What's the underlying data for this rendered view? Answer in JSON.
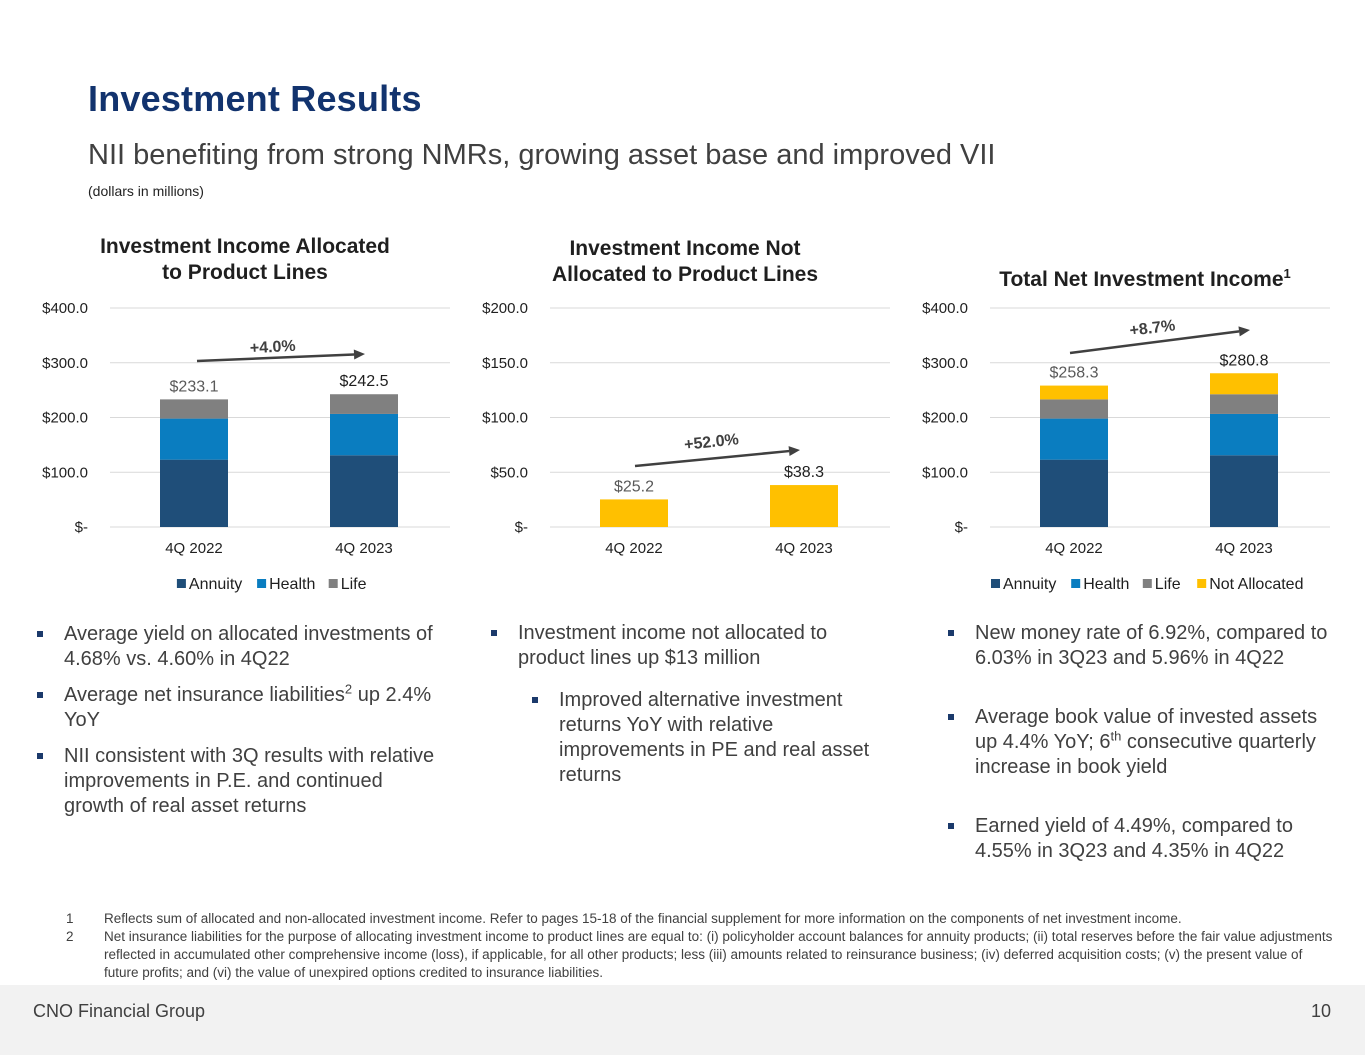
{
  "header": {
    "title": "Investment Results",
    "subtitle": "NII benefiting from strong NMRs, growing asset base and improved VII",
    "units": "(dollars in millions)"
  },
  "colors": {
    "annuity": "#1f4e79",
    "health": "#0a7dc0",
    "life": "#808080",
    "not_allocated": "#ffc000",
    "title": "#12336e"
  },
  "chart_data": [
    {
      "type": "bar",
      "stacked": true,
      "title_line1": "Investment Income Allocated",
      "title_line2": "to Product Lines",
      "categories": [
        "4Q 2022",
        "4Q 2023"
      ],
      "series": [
        {
          "name": "Annuity",
          "values": [
            123.0,
            131.0
          ]
        },
        {
          "name": "Health",
          "values": [
            75.0,
            75.5
          ]
        },
        {
          "name": "Life",
          "values": [
            35.1,
            36.0
          ]
        }
      ],
      "totals": [
        "$233.1",
        "$242.5"
      ],
      "growth_label": "+4.0%",
      "yticks": [
        "$-",
        "$100.0",
        "$200.0",
        "$300.0",
        "$400.0"
      ],
      "ylim": [
        0,
        400
      ],
      "grid": true,
      "legend": "bottom"
    },
    {
      "type": "bar",
      "stacked": true,
      "title_line1": "Investment Income Not",
      "title_line2": "Allocated to Product Lines",
      "categories": [
        "4Q 2022",
        "4Q 2023"
      ],
      "series": [
        {
          "name": "Not Allocated",
          "values": [
            25.2,
            38.3
          ]
        }
      ],
      "totals": [
        "$25.2",
        "$38.3"
      ],
      "growth_label": "+52.0%",
      "yticks": [
        "$-",
        "$50.0",
        "$100.0",
        "$150.0",
        "$200.0"
      ],
      "ylim": [
        0,
        200
      ],
      "grid": true,
      "legend": "none"
    },
    {
      "type": "bar",
      "stacked": true,
      "title_line1": "Total Net Investment Income",
      "title_sup": "1",
      "categories": [
        "4Q 2022",
        "4Q 2023"
      ],
      "series": [
        {
          "name": "Annuity",
          "values": [
            123.0,
            131.0
          ]
        },
        {
          "name": "Health",
          "values": [
            75.0,
            75.5
          ]
        },
        {
          "name": "Life",
          "values": [
            35.1,
            36.0
          ]
        },
        {
          "name": "Not Allocated",
          "values": [
            25.2,
            38.3
          ]
        }
      ],
      "totals": [
        "$258.3",
        "$280.8"
      ],
      "growth_label": "+8.7%",
      "yticks": [
        "$-",
        "$100.0",
        "$200.0",
        "$300.0",
        "$400.0"
      ],
      "ylim": [
        0,
        400
      ],
      "grid": true,
      "legend": "bottom"
    }
  ],
  "bullets": {
    "col1": [
      {
        "text": "Average yield on allocated investments of 4.68% vs. 4.60% in 4Q22"
      },
      {
        "pre": "Average net insurance liabilities",
        "sup": "2",
        "post": " up 2.4% YoY"
      },
      {
        "text": "NII consistent with 3Q results with relative improvements in P.E. and continued growth of real asset returns"
      }
    ],
    "col2": [
      {
        "text": "Investment income not allocated to product lines up $13 million"
      },
      {
        "text": "Improved alternative investment returns YoY with relative improvements in PE and real asset returns"
      }
    ],
    "col3": [
      {
        "text": "New money rate of 6.92%, compared to 6.03% in 3Q23 and 5.96% in 4Q22"
      },
      {
        "pre": "Average book value of invested assets up 4.4% YoY; 6",
        "sup": "th",
        "post": " consecutive quarterly increase in book yield"
      },
      {
        "text": "Earned yield of 4.49%, compared to 4.55% in 3Q23 and 4.35% in 4Q22"
      }
    ]
  },
  "footnotes": [
    {
      "num": "1",
      "text": "Reflects sum of allocated and non-allocated investment income. Refer to pages 15-18 of the financial supplement for more information on the components of net investment income."
    },
    {
      "num": "2",
      "text": "Net insurance liabilities for the purpose of allocating investment income to product lines are equal to: (i) policyholder account balances for annuity products; (ii) total reserves before the fair value adjustments reflected in accumulated other comprehensive income (loss), if applicable, for all other products; less (iii) amounts related to reinsurance business; (iv) deferred acquisition costs; (v) the present value of future profits; and (vi) the value of unexpired options credited to insurance liabilities."
    }
  ],
  "footer": {
    "company": "CNO Financial Group",
    "page_number": "10"
  }
}
